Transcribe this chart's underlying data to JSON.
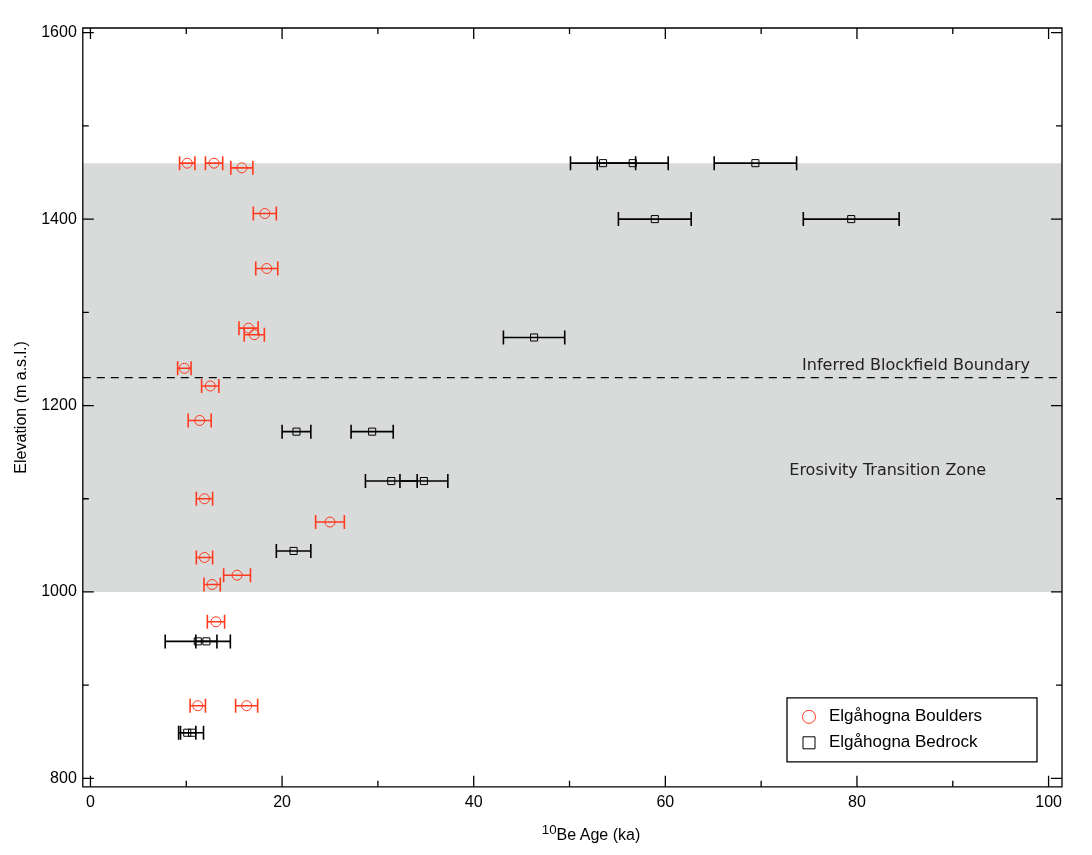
{
  "chart_data": {
    "type": "scatter",
    "xlabel": "$^{10}$Be Age (ka)",
    "ylabel": "Elevation (m a.s.l.)",
    "xlim": [
      -0.8,
      101.4
    ],
    "xticks": [
      0,
      {
        "value": 10,
        "label": null
      },
      20,
      {
        "value": 30,
        "label": null
      },
      40,
      {
        "value": 50,
        "label": null
      },
      60,
      {
        "value": 70,
        "label": null
      },
      80,
      {
        "value": 90,
        "label": null
      },
      100
    ],
    "ylim": [
      791,
      1605
    ],
    "yticks": [
      800,
      {
        "value": 900,
        "label": null
      },
      1000,
      {
        "value": 1100,
        "label": null
      },
      1200,
      {
        "value": 1300,
        "label": null
      },
      1400,
      {
        "value": 1500,
        "label": null
      },
      1600
    ],
    "grid": false,
    "legend": "bottom right",
    "series": [
      {
        "name": "Elgåhogna Boulders",
        "color": "#ff3b1f",
        "marker": "circle",
        "x": [
          10.1,
          12.9,
          15.8,
          18.2,
          18.4,
          16.5,
          17.1,
          9.8,
          12.5,
          11.4,
          11.9,
          25.0,
          11.9,
          15.3,
          12.7,
          13.1,
          11.2,
          16.3
        ],
        "values": [
          1460,
          1460,
          1455,
          1406,
          1347,
          1283,
          1276,
          1240,
          1221,
          1184,
          1100,
          1075,
          1037,
          1018,
          1008,
          968,
          878,
          878
        ],
        "xerrors": [
          0.8,
          0.9,
          1.15,
          1.2,
          1.15,
          1.0,
          1.05,
          0.7,
          0.9,
          1.2,
          0.85,
          1.5,
          0.85,
          1.4,
          0.85,
          0.9,
          0.8,
          1.15
        ]
      },
      {
        "name": "Elgåhogna Bedrock",
        "color": "#000000",
        "marker": "square",
        "x": [
          53.5,
          56.6,
          69.4,
          58.9,
          79.4,
          46.3,
          21.5,
          29.4,
          31.4,
          34.8,
          21.2,
          11.2,
          12.1,
          10.1,
          10.6
        ],
        "values": [
          1460,
          1460,
          1460,
          1400,
          1400,
          1273,
          1172,
          1172,
          1119,
          1119,
          1044,
          947,
          947,
          849,
          849
        ],
        "xerrors": [
          3.4,
          3.7,
          4.3,
          3.8,
          5.0,
          3.2,
          1.5,
          2.2,
          2.7,
          2.5,
          1.8,
          3.4,
          1.1,
          0.9,
          1.2
        ]
      }
    ],
    "ref_lines": [
      {
        "axis": "y",
        "value": 1230,
        "label": "Inferred Blockfield Boundary",
        "line_style": "dashed",
        "color": "#000000"
      }
    ],
    "bands": [
      {
        "axis": "y",
        "from": 1000,
        "to": 1460,
        "label": "Erosivity Transition Zone",
        "color": "#d9dada"
      }
    ]
  }
}
